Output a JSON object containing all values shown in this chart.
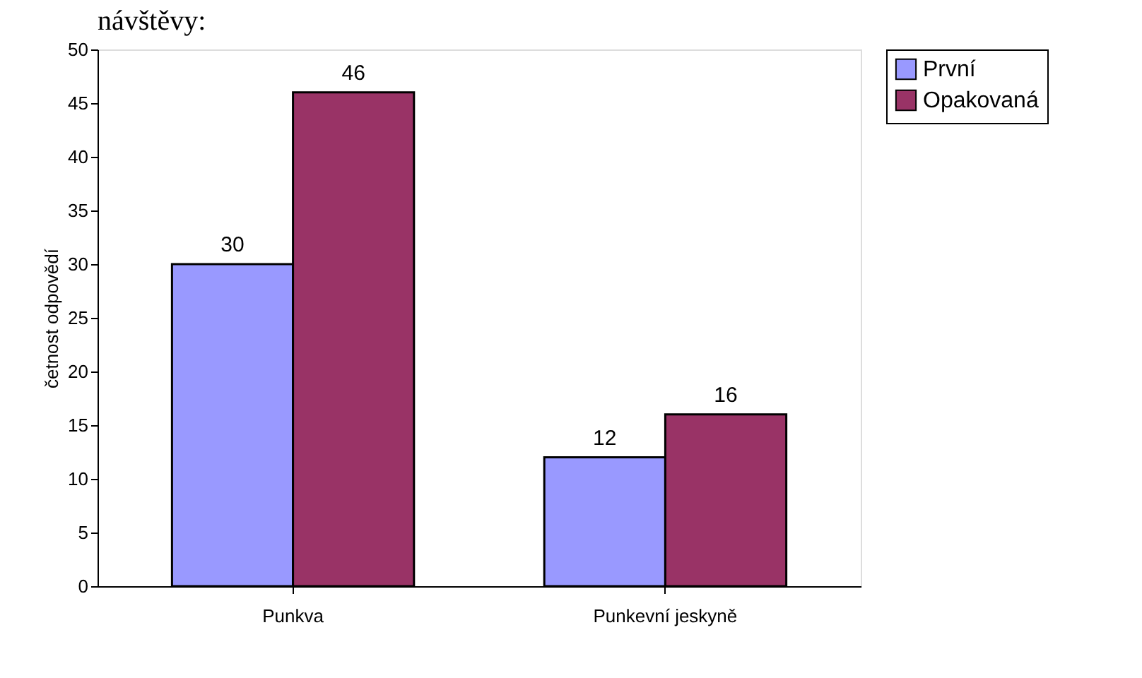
{
  "chart_data": {
    "type": "bar",
    "ylabel": "četnost odpovědí",
    "categories": [
      "Punkva",
      "Punkevní jeskyně"
    ],
    "series": [
      {
        "name": "První",
        "color": "#9999ff",
        "values": [
          30,
          12
        ]
      },
      {
        "name": "Opakovaná",
        "color": "#993366",
        "values": [
          46,
          16
        ]
      }
    ],
    "ylim": [
      0,
      50
    ],
    "yticks": [
      0,
      5,
      10,
      15,
      20,
      25,
      30,
      35,
      40,
      45,
      50
    ],
    "data_labels": true,
    "legend": "right",
    "grid": false,
    "annotations": [
      "návštěvy:"
    ]
  }
}
